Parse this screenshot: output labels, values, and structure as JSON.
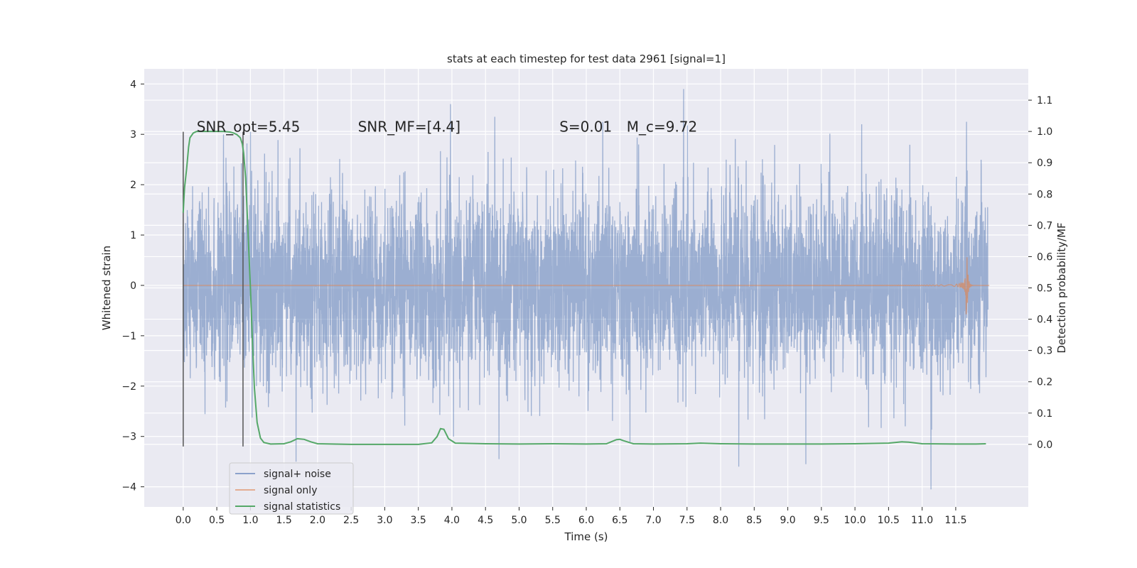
{
  "chart_data": {
    "type": "line",
    "title": "stats at each timestep for test data 2961 [signal=1]",
    "xlabel": "Time (s)",
    "ylabel": "Whitened strain",
    "y2label": "Detection probability/MF",
    "xlim": [
      -0.58,
      12.58
    ],
    "ylim": [
      -4.4,
      4.3
    ],
    "y2lim": [
      -0.2,
      1.2
    ],
    "xticks": [
      "0.0",
      "0.5",
      "1.0",
      "1.5",
      "2.0",
      "2.5",
      "3.0",
      "3.5",
      "4.0",
      "4.5",
      "5.0",
      "5.5",
      "6.0",
      "6.5",
      "7.0",
      "7.5",
      "8.0",
      "8.5",
      "9.0",
      "9.5",
      "10.0",
      "10.5",
      "11.0",
      "11.5"
    ],
    "yticks": [
      "4",
      "3",
      "2",
      "1",
      "0",
      "−1",
      "−2",
      "−3",
      "−4"
    ],
    "y2ticks": [
      "1.1",
      "1.0",
      "0.9",
      "0.8",
      "0.7",
      "0.6",
      "0.5",
      "0.4",
      "0.3",
      "0.2",
      "0.1",
      "0.0"
    ],
    "grid": true,
    "background": "#eaeaf2",
    "annotations": [
      {
        "text": "SNR_opt=5.45",
        "x": 0.2,
        "y": 3.05
      },
      {
        "text": "SNR_MF=[4.4]",
        "x": 2.6,
        "y": 3.05
      },
      {
        "text": "S=0.01",
        "x": 5.6,
        "y": 3.05
      },
      {
        "text": "M_c=9.72",
        "x": 6.6,
        "y": 3.05
      }
    ],
    "vlines": [
      {
        "x": 0.0,
        "ymin": -3.2,
        "ymax": 3.05
      },
      {
        "x": 0.89,
        "ymin": -3.2,
        "ymax": 3.05
      }
    ],
    "series": [
      {
        "name": "signal+ noise",
        "color": "#4c72b0",
        "style": "whitened strain, 2048 Hz sampled noise, approx. unit variance, t from 0 to 12 s",
        "peaks": [
          {
            "x": 0.6,
            "y": 3.0
          },
          {
            "x": 1.0,
            "y": 3.05
          },
          {
            "x": 1.68,
            "y": -3.5
          },
          {
            "x": 3.98,
            "y": 3.6
          },
          {
            "x": 4.7,
            "y": -3.45
          },
          {
            "x": 7.45,
            "y": 3.9
          },
          {
            "x": 8.27,
            "y": -3.6
          },
          {
            "x": 9.27,
            "y": -3.55
          },
          {
            "x": 10.1,
            "y": 3.2
          },
          {
            "x": 11.13,
            "y": -4.05
          },
          {
            "x": 11.66,
            "y": 3.25
          }
        ]
      },
      {
        "name": "signal only",
        "color": "#dd8452",
        "style": "chirp, amplitude growing toward merger",
        "merger_time": 11.66,
        "peak_amplitude": 0.62,
        "end_time": 12.0
      },
      {
        "name": "signal statistics",
        "color": "#55a868",
        "axis": "right",
        "x": [
          0.0,
          0.02,
          0.05,
          0.08,
          0.1,
          0.15,
          0.2,
          0.3,
          0.5,
          0.6,
          0.7,
          0.75,
          0.8,
          0.85,
          0.88,
          0.9,
          0.93,
          0.96,
          1.0,
          1.03,
          1.06,
          1.1,
          1.15,
          1.2,
          1.3,
          1.5,
          1.6,
          1.7,
          1.8,
          1.9,
          2.0,
          2.5,
          3.0,
          3.5,
          3.7,
          3.78,
          3.83,
          3.88,
          3.95,
          4.05,
          4.5,
          5.0,
          5.5,
          6.0,
          6.3,
          6.45,
          6.5,
          6.55,
          6.7,
          7.0,
          7.5,
          7.7,
          8.0,
          8.5,
          9.0,
          9.5,
          10.0,
          10.5,
          10.7,
          10.8,
          11.0,
          11.5,
          11.8,
          11.95
        ],
        "y": [
          0.74,
          0.82,
          0.88,
          0.95,
          0.98,
          0.995,
          1.0,
          1.0,
          1.0,
          1.0,
          0.998,
          0.995,
          0.99,
          0.98,
          0.96,
          0.93,
          0.85,
          0.7,
          0.5,
          0.33,
          0.18,
          0.07,
          0.02,
          0.006,
          0.001,
          0.002,
          0.008,
          0.018,
          0.016,
          0.008,
          0.002,
          0.0,
          0.0,
          0.0,
          0.005,
          0.025,
          0.05,
          0.048,
          0.018,
          0.004,
          0.002,
          0.001,
          0.002,
          0.001,
          0.002,
          0.015,
          0.016,
          0.012,
          0.002,
          0.001,
          0.002,
          0.004,
          0.002,
          0.001,
          0.001,
          0.001,
          0.002,
          0.004,
          0.008,
          0.007,
          0.002,
          0.001,
          0.001,
          0.002
        ]
      }
    ],
    "legend": {
      "placement": "lower-left"
    }
  }
}
